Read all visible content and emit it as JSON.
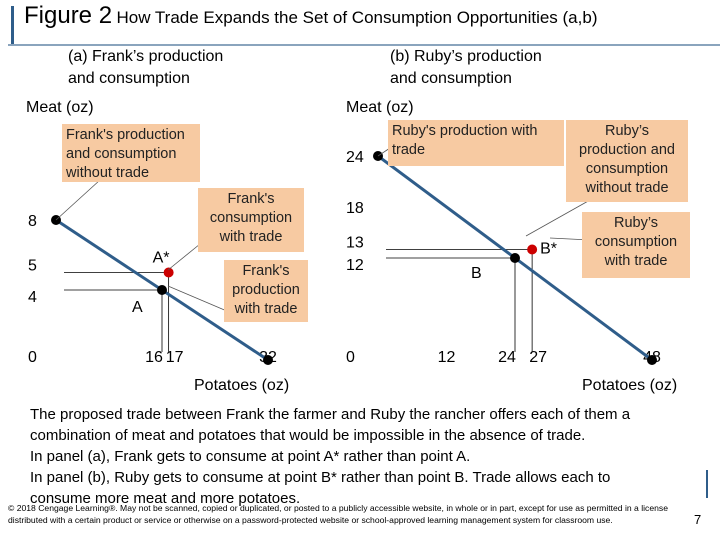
{
  "title": {
    "main": "Figure 2",
    "rest": "How Trade Expands the Set of Consumption Opportunities (a,b)"
  },
  "chart_data": [
    {
      "type": "line",
      "panel_title": "(a) Frank’s production\nand consumption",
      "ylabel": "Meat (oz)",
      "xlabel": "Potatoes (oz)",
      "xlim": [
        0,
        32
      ],
      "ylim": [
        0,
        8
      ],
      "line": [
        [
          0,
          8
        ],
        [
          32,
          0
        ]
      ],
      "x_ticks": [
        "16",
        "17"
      ],
      "x_tick_values": [
        16,
        17
      ],
      "x_end_tick": "32",
      "origin_tick": "0",
      "y_ticks": [
        "8",
        "5",
        "4"
      ],
      "y_tick_values": [
        8,
        5,
        4
      ],
      "points": [
        {
          "label": "A",
          "x": 16,
          "y": 4,
          "color": "#000000"
        },
        {
          "label": "A*",
          "x": 17,
          "y": 5,
          "color": "#cc0000"
        }
      ],
      "annotations": [
        "Frank's production and consumption without trade",
        "Frank's consumption with trade",
        "Frank's production with trade"
      ]
    },
    {
      "type": "line",
      "panel_title": "(b) Ruby’s production\nand consumption",
      "ylabel": "Meat (oz)",
      "xlabel": "Potatoes (oz)",
      "xlim": [
        0,
        48
      ],
      "ylim": [
        0,
        24
      ],
      "line": [
        [
          0,
          24
        ],
        [
          48,
          0
        ]
      ],
      "x_ticks": [
        "12",
        "24",
        "27"
      ],
      "x_tick_values": [
        12,
        24,
        27
      ],
      "x_end_tick": "48",
      "origin_tick": "0",
      "y_ticks": [
        "24",
        "18",
        "13",
        "12"
      ],
      "y_tick_values": [
        24,
        18,
        13,
        12
      ],
      "points": [
        {
          "label": "B",
          "x": 24,
          "y": 12,
          "color": "#000000"
        },
        {
          "label": "B*",
          "x": 27,
          "y": 13,
          "color": "#cc0000"
        }
      ],
      "annotations": [
        "Ruby's production with trade",
        "Ruby’s production and consumption without trade",
        "Ruby’s consumption with trade"
      ]
    }
  ],
  "description": [
    "The proposed trade between Frank the farmer and Ruby the rancher offers each of them a",
    "combination of meat and potatoes that would be impossible in the absence of trade.",
    "In panel (a), Frank gets to consume at point A* rather than point A.",
    "In panel (b), Ruby gets to consume at point B* rather than point B. Trade allows each to",
    "consume more meat and more potatoes."
  ],
  "footer": "© 2018 Cengage Learning®. May not be scanned, copied or duplicated, or posted to a publicly accessible website, in whole or in part, except for use as permitted in a license distributed with a certain product or service or otherwise on a password-protected website or school-approved learning management system for classroom use.",
  "page_number": "7",
  "colors": {
    "line": "#2f5d8a",
    "callout": "#f7caa2",
    "trade_point": "#cc0000"
  }
}
